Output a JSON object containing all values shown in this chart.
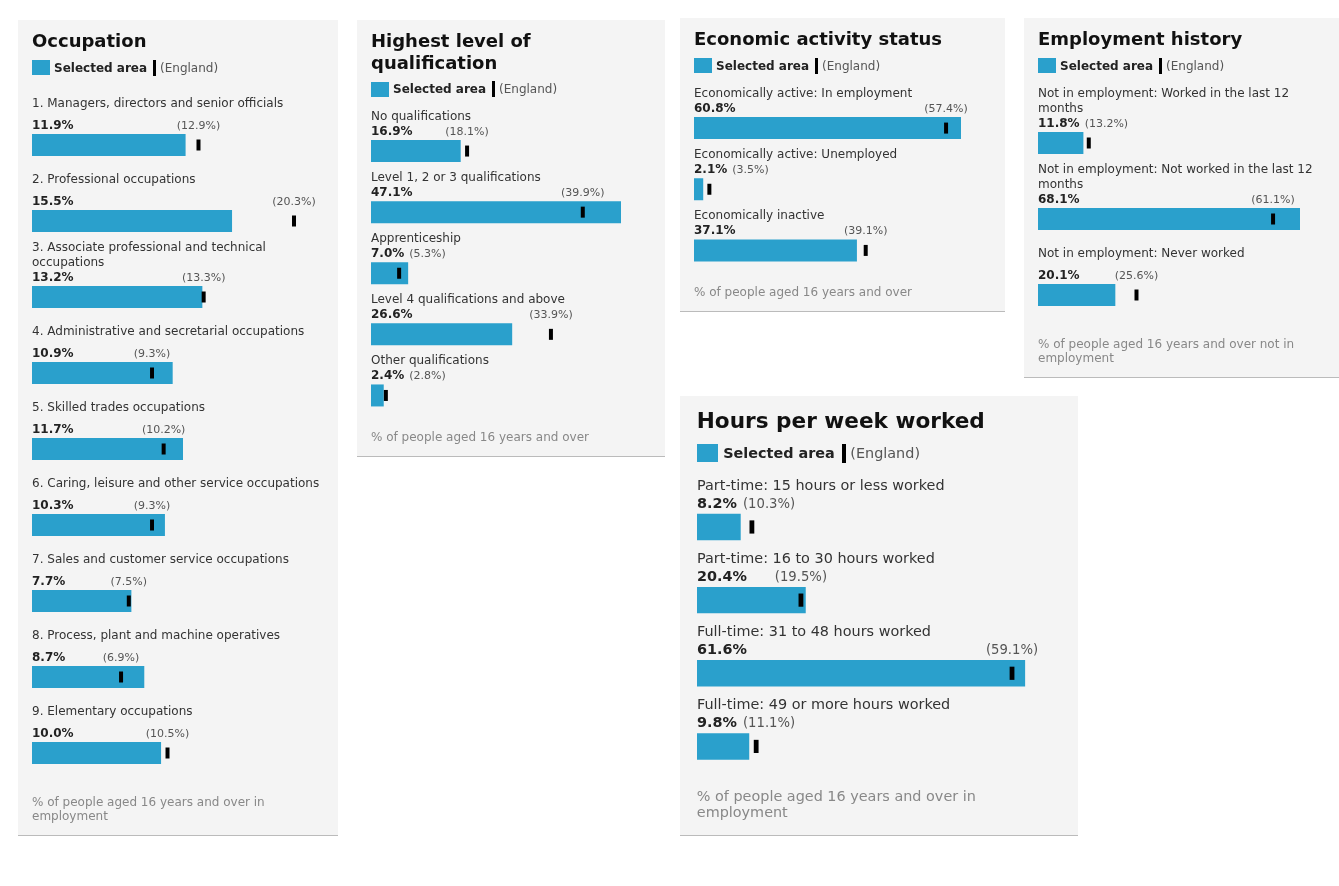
{
  "chart_data": [
    {
      "type": "bar",
      "orientation": "horizontal",
      "title": "Occupation",
      "legend": "top",
      "categories": [
        "1. Managers, directors and senior officials",
        "2. Professional occupations",
        "3. Associate professional and technical occupations",
        "4. Administrative and secretarial occupations",
        "5. Skilled trades occupations",
        "6. Caring, leisure and other service occupations",
        "7. Sales and customer service occupations",
        "8. Process, plant and machine operatives",
        "9. Elementary occupations"
      ],
      "series": [
        {
          "name": "Selected area",
          "color": "#2aa0cc",
          "values": [
            11.9,
            15.5,
            13.2,
            10.9,
            11.7,
            10.3,
            7.7,
            8.7,
            10.0
          ],
          "value_labels": [
            "11.9%",
            "15.5%",
            "13.2%",
            "10.9%",
            "11.7%",
            "10.3%",
            "7.7%",
            "8.7%",
            "10.0%"
          ]
        },
        {
          "name": "(England)",
          "type": "scatter",
          "color": "#000000",
          "values": [
            12.9,
            20.3,
            13.3,
            9.3,
            10.2,
            9.3,
            7.5,
            6.9,
            10.5
          ],
          "value_labels": [
            "(12.9%)",
            "(20.3%)",
            "(13.3%)",
            "(9.3%)",
            "(10.2%)",
            "(9.3%)",
            "(7.5%)",
            "(6.9%)",
            "(10.5%)"
          ]
        }
      ],
      "annotations": [
        "% of people aged 16 years and over in employment"
      ]
    },
    {
      "type": "bar",
      "orientation": "horizontal",
      "title": "Highest level of qualification",
      "legend": "top",
      "categories": [
        "No qualifications",
        "Level 1, 2 or 3 qualifications",
        "Apprenticeship",
        "Level 4 qualifications and above",
        "Other qualifications"
      ],
      "series": [
        {
          "name": "Selected area",
          "color": "#2aa0cc",
          "values": [
            16.9,
            47.1,
            7.0,
            26.6,
            2.4
          ],
          "value_labels": [
            "16.9%",
            "47.1%",
            "7.0%",
            "26.6%",
            "2.4%"
          ]
        },
        {
          "name": "(England)",
          "type": "scatter",
          "color": "#000000",
          "values": [
            18.1,
            39.9,
            5.3,
            33.9,
            2.8
          ],
          "value_labels": [
            "(18.1%)",
            "(39.9%)",
            "(5.3%)",
            "(33.9%)",
            "(2.8%)"
          ]
        }
      ],
      "annotations": [
        "% of people aged 16 years and over"
      ]
    },
    {
      "type": "bar",
      "orientation": "horizontal",
      "title": "Economic activity status",
      "legend": "top",
      "categories": [
        "Economically active: In employment",
        "Economically active: Unemployed",
        "Economically inactive"
      ],
      "series": [
        {
          "name": "Selected area",
          "color": "#2aa0cc",
          "values": [
            60.8,
            2.1,
            37.1
          ],
          "value_labels": [
            "60.8%",
            "2.1%",
            "37.1%"
          ]
        },
        {
          "name": "(England)",
          "type": "scatter",
          "color": "#000000",
          "values": [
            57.4,
            3.5,
            39.1
          ],
          "value_labels": [
            "(57.4%)",
            "(3.5%)",
            "(39.1%)"
          ]
        }
      ],
      "annotations": [
        "% of people aged 16 years and over"
      ]
    },
    {
      "type": "bar",
      "orientation": "horizontal",
      "title": "Employment history",
      "legend": "top",
      "categories": [
        "Not in employment: Worked in the last 12 months",
        "Not in employment: Not worked in the last 12 months",
        "Not in employment: Never worked"
      ],
      "series": [
        {
          "name": "Selected area",
          "color": "#2aa0cc",
          "values": [
            11.8,
            68.1,
            20.1
          ],
          "value_labels": [
            "11.8%",
            "68.1%",
            "20.1%"
          ]
        },
        {
          "name": "(England)",
          "type": "scatter",
          "color": "#000000",
          "values": [
            13.2,
            61.1,
            25.6
          ],
          "value_labels": [
            "(13.2%)",
            "(61.1%)",
            "(25.6%)"
          ]
        }
      ],
      "annotations": [
        "% of people aged 16 years and over not in employment"
      ]
    },
    {
      "type": "bar",
      "orientation": "horizontal",
      "title": "Hours per week worked",
      "legend": "top",
      "categories": [
        "Part-time: 15 hours or less worked",
        "Part-time: 16 to 30 hours worked",
        "Full-time: 31 to 48 hours worked",
        "Full-time: 49 or more hours worked"
      ],
      "series": [
        {
          "name": "Selected area",
          "color": "#2aa0cc",
          "values": [
            8.2,
            20.4,
            61.6,
            9.8
          ],
          "value_labels": [
            "8.2%",
            "20.4%",
            "61.6%",
            "9.8%"
          ]
        },
        {
          "name": "(England)",
          "type": "scatter",
          "color": "#000000",
          "values": [
            10.3,
            19.5,
            59.1,
            11.1
          ],
          "value_labels": [
            "(10.3%)",
            "(19.5%)",
            "(59.1%)",
            "(11.1%)"
          ]
        }
      ],
      "annotations": [
        "% of people aged 16 years and over in employment"
      ]
    }
  ]
}
